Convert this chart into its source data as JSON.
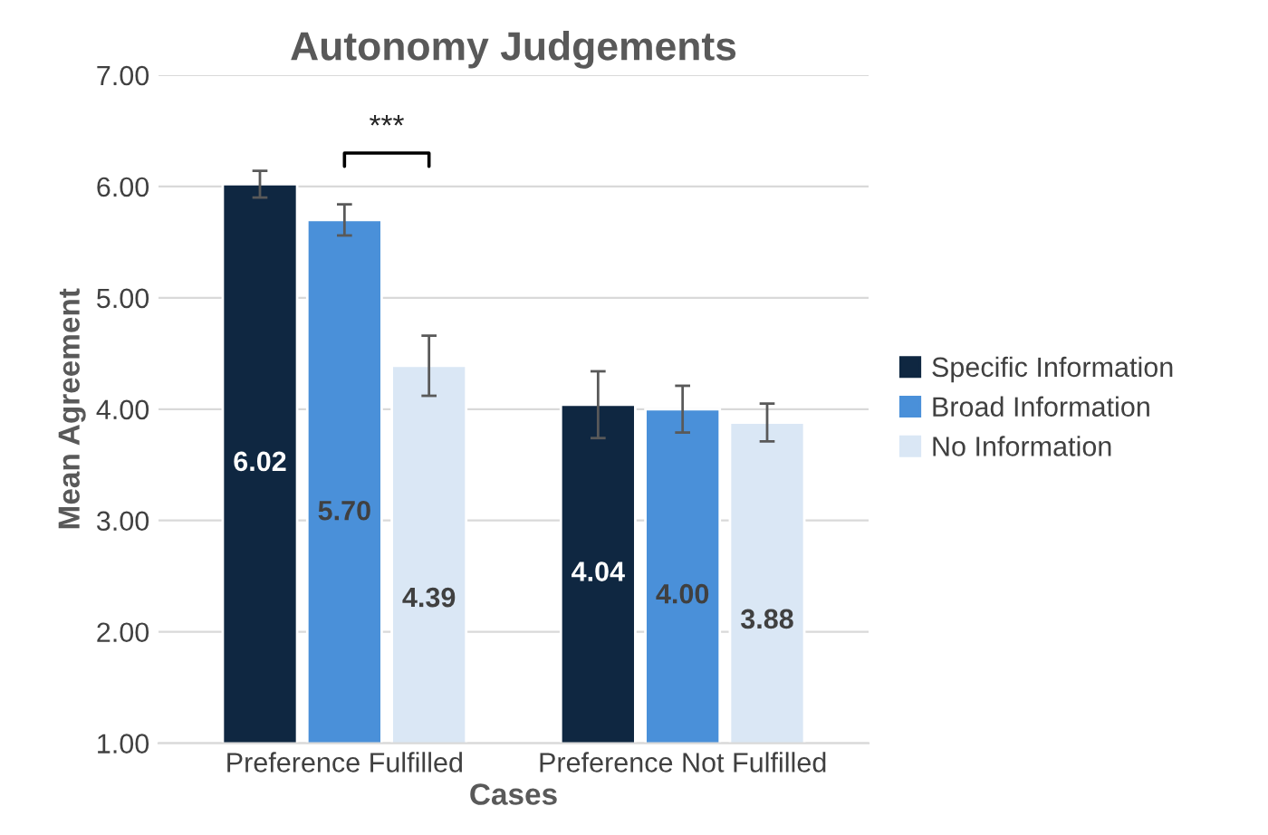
{
  "chart_data": {
    "type": "bar",
    "title": "Autonomy Judgements",
    "xlabel": "Cases",
    "ylabel": "Mean Agreement",
    "categories": [
      "Preference Fulfilled",
      "Preference Not Fulfilled"
    ],
    "series": [
      {
        "name": "Specific Information",
        "color": "#0f2741",
        "values": [
          6.02,
          4.04
        ],
        "value_labels": [
          "6.02",
          "4.04"
        ],
        "errors": [
          0.12,
          0.3
        ]
      },
      {
        "name": "Broad Information",
        "color": "#4a90d9",
        "values": [
          5.7,
          4.0
        ],
        "value_labels": [
          "5.70",
          "4.00"
        ],
        "errors": [
          0.14,
          0.21
        ]
      },
      {
        "name": "No Information",
        "color": "#dae7f5",
        "values": [
          4.39,
          3.88
        ],
        "value_labels": [
          "4.39",
          "3.88"
        ],
        "errors": [
          0.27,
          0.17
        ]
      }
    ],
    "ylim": [
      1,
      7
    ],
    "yticks": [
      {
        "value": 1,
        "label": "1.00"
      },
      {
        "value": 2,
        "label": "2.00"
      },
      {
        "value": 3,
        "label": "3.00"
      },
      {
        "value": 4,
        "label": "4.00"
      },
      {
        "value": 5,
        "label": "5.00"
      },
      {
        "value": 6,
        "label": "6.00"
      },
      {
        "value": 7,
        "label": "7.00"
      }
    ],
    "grid": "y",
    "legend": "right",
    "annotations": [
      "***"
    ]
  }
}
